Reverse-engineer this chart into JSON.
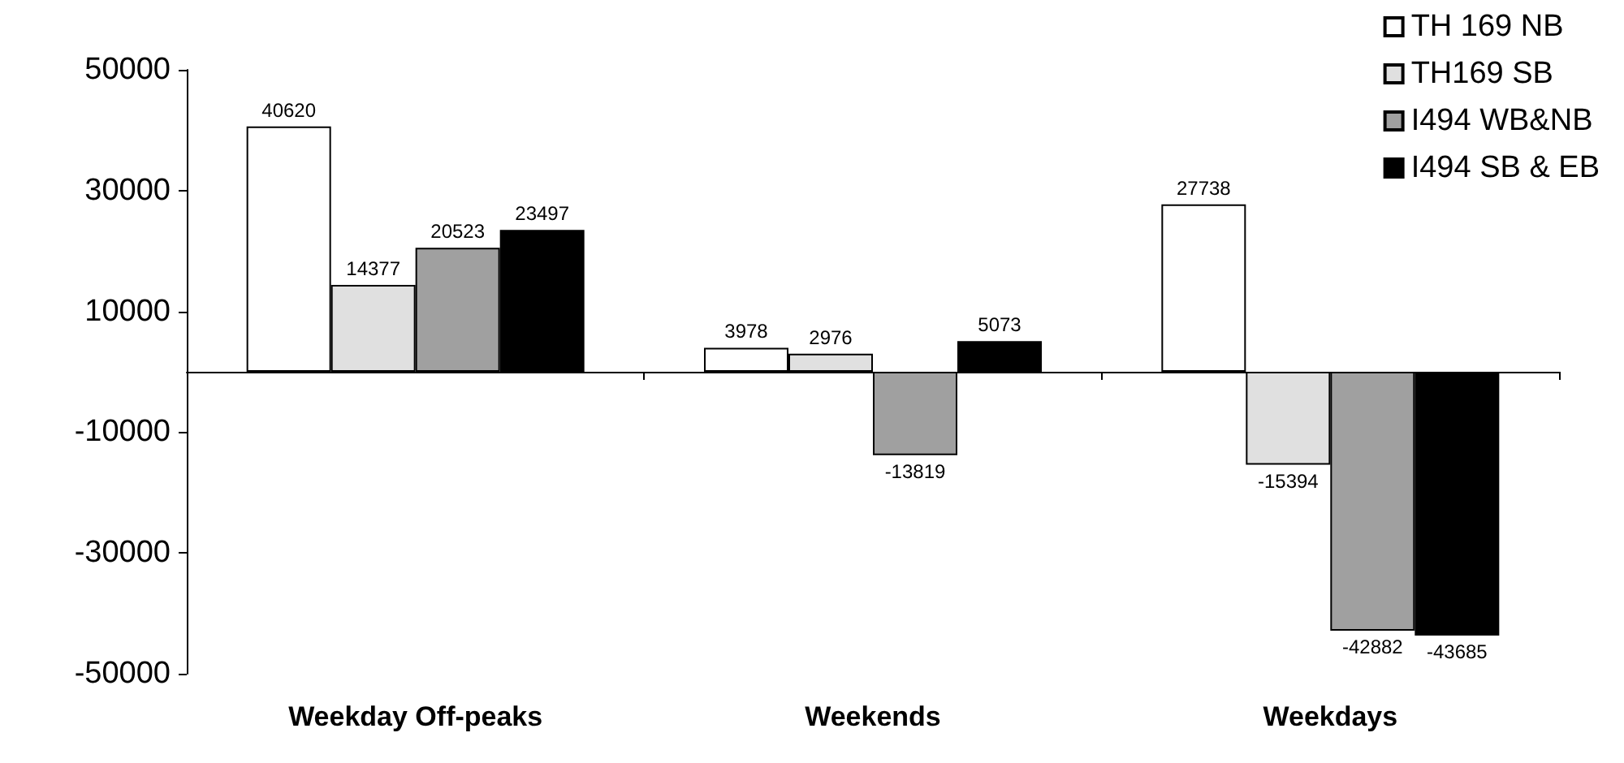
{
  "chart_data": {
    "type": "bar",
    "categories": [
      "Weekday Off-peaks",
      "Weekends",
      "Weekdays"
    ],
    "series": [
      {
        "name": "TH 169 NB",
        "color": "#ffffff",
        "values": [
          40620,
          3978,
          27738
        ]
      },
      {
        "name": "TH169 SB",
        "color": "#e0e0e0",
        "values": [
          14377,
          2976,
          -15394
        ]
      },
      {
        "name": "I494 WB&NB",
        "color": "#a0a0a0",
        "values": [
          20523,
          -13819,
          -42882
        ]
      },
      {
        "name": "I494 SB & EB",
        "color": "#000000",
        "values": [
          23497,
          5073,
          -43685
        ]
      }
    ],
    "ylim": [
      -50000,
      50000
    ],
    "yticks": [
      -50000,
      -30000,
      -10000,
      10000,
      30000,
      50000
    ],
    "data_labels": true,
    "legend": "top right",
    "grid": false
  }
}
